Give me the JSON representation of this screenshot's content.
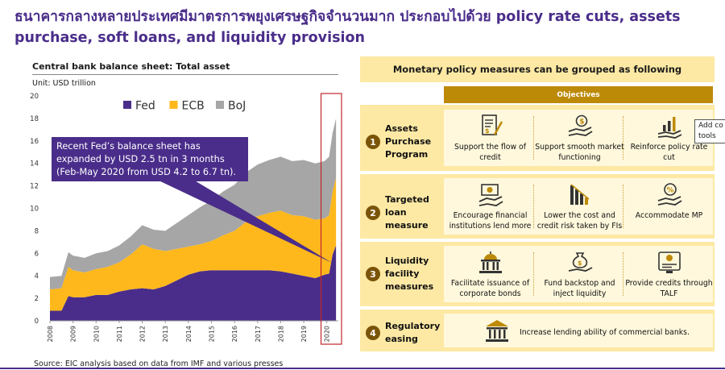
{
  "title": "ธนาคารกลางหลายประเทศมีมาตรการพยุงเศรษฐกิจจำนวนมาก ประกอบไปด้วย policy rate cuts, assets purchase, soft loans, and liquidity provision",
  "chart_title": "Central bank balance sheet: Total asset",
  "unit_label": "Unit: USD trillion",
  "callout": "Recent Fed’s balance sheet has expanded by USD 2.5 tn in 3 months (Feb-May 2020 from USD 4.2 to 6.7 tn).",
  "source": "Source: EIC analysis based on data from IMF and various presses",
  "chart_data": {
    "type": "area",
    "stacked": true,
    "title": "Central bank balance sheet: Total asset",
    "ylabel": "USD trillion",
    "ylim": [
      0,
      20
    ],
    "y_ticks": [
      0,
      2,
      4,
      6,
      8,
      10,
      12,
      14,
      16,
      18,
      20
    ],
    "x_ticks": [
      "2008",
      "2009",
      "2010",
      "2011",
      "2012",
      "2013",
      "2014",
      "2015",
      "2016",
      "2017",
      "2018",
      "2019",
      "2020"
    ],
    "grid": false,
    "legend": "top",
    "x": [
      2008.0,
      2008.5,
      2008.8,
      2009.0,
      2009.5,
      2010.0,
      2010.5,
      2011.0,
      2011.5,
      2012.0,
      2012.5,
      2013.0,
      2013.5,
      2014.0,
      2014.5,
      2015.0,
      2015.5,
      2016.0,
      2016.5,
      2017.0,
      2017.5,
      2018.0,
      2018.5,
      2019.0,
      2019.5,
      2019.9,
      2020.1,
      2020.25,
      2020.4
    ],
    "series": [
      {
        "name": "Fed",
        "color": "#4a2d8a",
        "values": [
          0.9,
          0.9,
          2.2,
          2.1,
          2.1,
          2.3,
          2.3,
          2.6,
          2.8,
          2.9,
          2.8,
          3.1,
          3.6,
          4.1,
          4.4,
          4.5,
          4.5,
          4.5,
          4.5,
          4.5,
          4.5,
          4.4,
          4.2,
          4.0,
          3.8,
          4.1,
          4.2,
          5.9,
          6.7
        ]
      },
      {
        "name": "ECB",
        "color": "#ffb81c",
        "values": [
          1.9,
          2.0,
          2.6,
          2.4,
          2.2,
          2.3,
          2.5,
          2.6,
          3.1,
          3.9,
          3.6,
          3.1,
          2.8,
          2.5,
          2.4,
          2.6,
          3.1,
          3.5,
          4.3,
          4.8,
          5.1,
          5.4,
          5.2,
          5.3,
          5.2,
          5.0,
          5.2,
          5.6,
          6.0
        ]
      },
      {
        "name": "BoJ",
        "color": "#a6a6a6",
        "values": [
          1.1,
          1.1,
          1.3,
          1.3,
          1.3,
          1.4,
          1.4,
          1.5,
          1.6,
          1.7,
          1.7,
          1.8,
          2.3,
          2.8,
          3.3,
          3.6,
          3.9,
          4.1,
          4.4,
          4.6,
          4.7,
          4.8,
          4.8,
          5.0,
          5.0,
          5.1,
          5.2,
          5.2,
          5.3
        ]
      }
    ]
  },
  "panel": {
    "header": "Monetary policy measures can be grouped as following",
    "objectives_label": "Objectives",
    "rows": [
      {
        "num": "1",
        "label": "Assets Purchase Program",
        "items": [
          {
            "icon": "document-pen-icon",
            "text": "Support the flow of credit"
          },
          {
            "icon": "hand-coin-icon",
            "text": "Support smooth market functioning"
          },
          {
            "icon": "hand-chart-icon",
            "text": "Reinforce policy rate cut"
          }
        ]
      },
      {
        "num": "2",
        "label": "Targeted loan measure",
        "items": [
          {
            "icon": "money-hand-icon",
            "text": "Encourage financial institutions lend more"
          },
          {
            "icon": "bar-chart-down-icon",
            "text": "Lower the cost and credit risk taken by FIs"
          },
          {
            "icon": "hand-percent-icon",
            "text": "Accommodate MP"
          }
        ]
      },
      {
        "num": "3",
        "label": "Liquidity facility measures",
        "items": [
          {
            "icon": "capitol-building-icon",
            "text": "Facilitate issuance of corporate bonds"
          },
          {
            "icon": "money-bag-hand-icon",
            "text": "Fund backstop and inject liquidity"
          },
          {
            "icon": "credit-screen-icon",
            "text": "Provide credits through TALF"
          }
        ]
      },
      {
        "num": "4",
        "label": "Regulatory easing",
        "items": [
          {
            "icon": "bank-icon",
            "text": "Increase lending ability of commercial banks."
          }
        ]
      }
    ]
  },
  "tooltip": "Add co tools"
}
